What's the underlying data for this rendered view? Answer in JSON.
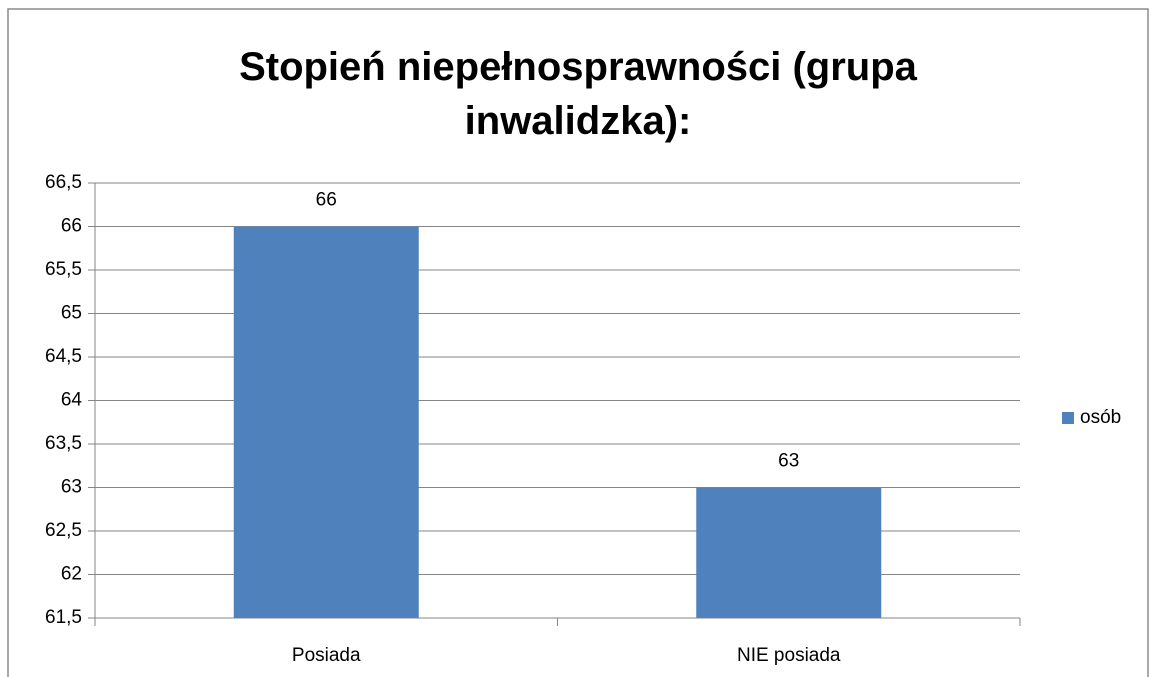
{
  "chart_data": {
    "type": "bar",
    "title": "Stopień niepełnosprawności (grupa inwalidzka):",
    "categories": [
      "Posiada",
      "NIE posiada"
    ],
    "series": [
      {
        "name": "osób",
        "color": "#4f81bd",
        "values": [
          66,
          63
        ]
      }
    ],
    "ylim": [
      61.5,
      66.5
    ],
    "yticks": [
      {
        "value": 61.5,
        "label": "61,5"
      },
      62,
      {
        "value": 62.5,
        "label": "62,5"
      },
      63,
      {
        "value": 63.5,
        "label": "63,5"
      },
      64,
      {
        "value": 64.5,
        "label": "64,5"
      },
      65,
      {
        "value": 65.5,
        "label": "65,5"
      },
      66,
      {
        "value": 66.5,
        "label": "66,5"
      }
    ],
    "grid": true,
    "legend": "right"
  }
}
